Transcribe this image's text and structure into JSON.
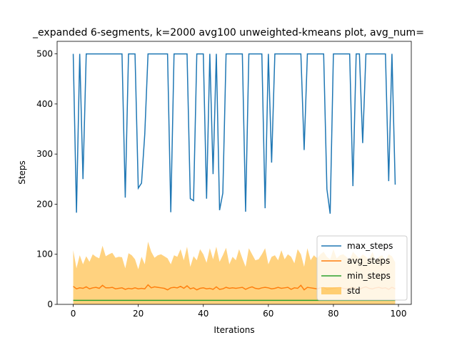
{
  "chart_data": {
    "type": "line",
    "title": "_expanded 6-segments, k=2000 avg100 unweighted-kmeans plot, avg_num=",
    "xlabel": "Iterations",
    "ylabel": "Steps",
    "x": [
      0,
      1,
      2,
      3,
      4,
      5,
      6,
      7,
      8,
      9,
      10,
      11,
      12,
      13,
      14,
      15,
      16,
      17,
      18,
      19,
      20,
      21,
      22,
      23,
      24,
      25,
      26,
      27,
      28,
      29,
      30,
      31,
      32,
      33,
      34,
      35,
      36,
      37,
      38,
      39,
      40,
      41,
      42,
      43,
      44,
      45,
      46,
      47,
      48,
      49,
      50,
      51,
      52,
      53,
      54,
      55,
      56,
      57,
      58,
      59,
      60,
      61,
      62,
      63,
      64,
      65,
      66,
      67,
      68,
      69,
      70,
      71,
      72,
      73,
      74,
      75,
      76,
      77,
      78,
      79,
      80,
      81,
      82,
      83,
      84,
      85,
      86,
      87,
      88,
      89,
      90,
      91,
      92,
      93,
      94,
      95,
      96,
      97,
      98,
      99
    ],
    "series": [
      {
        "name": "max_steps",
        "color": "#1f77b4",
        "values": [
          500,
          183,
          500,
          250,
          500,
          500,
          500,
          500,
          500,
          500,
          500,
          500,
          500,
          500,
          500,
          500,
          213,
          500,
          500,
          500,
          232,
          242,
          340,
          500,
          500,
          500,
          500,
          500,
          500,
          500,
          184,
          500,
          500,
          500,
          500,
          500,
          211,
          207,
          500,
          500,
          500,
          211,
          500,
          260,
          500,
          188,
          222,
          500,
          500,
          500,
          500,
          500,
          500,
          185,
          500,
          500,
          500,
          500,
          500,
          192,
          500,
          283,
          500,
          500,
          500,
          500,
          500,
          500,
          500,
          500,
          500,
          308,
          500,
          500,
          500,
          500,
          500,
          500,
          230,
          181,
          500,
          500,
          500,
          500,
          500,
          500,
          236,
          500,
          500,
          322,
          500,
          500,
          500,
          500,
          500,
          500,
          500,
          246,
          500,
          239
        ]
      },
      {
        "name": "avg_steps",
        "color": "#ff7f0e",
        "values": [
          36,
          31,
          33,
          32,
          35,
          31,
          33,
          34,
          32,
          38,
          33,
          33,
          34,
          31,
          32,
          33,
          30,
          32,
          31,
          33,
          31,
          32,
          31,
          39,
          33,
          35,
          34,
          33,
          32,
          29,
          33,
          34,
          33,
          36,
          32,
          37,
          31,
          33,
          29,
          32,
          33,
          31,
          32,
          30,
          35,
          30,
          31,
          34,
          32,
          33,
          32,
          33,
          34,
          30,
          33,
          35,
          32,
          31,
          33,
          34,
          33,
          31,
          32,
          34,
          32,
          33,
          34,
          30,
          33,
          32,
          38,
          29,
          34,
          33,
          32,
          31,
          33,
          34,
          30,
          31,
          32,
          33,
          34,
          32,
          31,
          33,
          34,
          32,
          30,
          33,
          35,
          32,
          31,
          33,
          34,
          32,
          33,
          30,
          34,
          31
        ]
      },
      {
        "name": "min_steps",
        "color": "#2ca02c",
        "values": [
          8,
          8,
          8,
          8,
          8,
          8,
          8,
          8,
          8,
          8,
          8,
          8,
          8,
          8,
          8,
          8,
          8,
          8,
          8,
          8,
          8,
          8,
          8,
          8,
          8,
          8,
          8,
          8,
          8,
          8,
          8,
          8,
          8,
          8,
          8,
          8,
          8,
          8,
          8,
          8,
          8,
          8,
          8,
          8,
          8,
          8,
          8,
          8,
          8,
          8,
          8,
          8,
          8,
          8,
          8,
          8,
          8,
          8,
          8,
          8,
          8,
          8,
          8,
          8,
          8,
          8,
          8,
          8,
          8,
          8,
          8,
          8,
          8,
          8,
          8,
          8,
          8,
          8,
          8,
          8,
          8,
          8,
          8,
          8,
          8,
          8,
          8,
          8,
          8,
          8,
          8,
          8,
          8,
          8,
          8,
          8,
          8,
          8,
          8,
          8
        ]
      }
    ],
    "std": {
      "name": "std",
      "color": "#ffa500",
      "values": [
        72,
        41,
        65,
        48,
        61,
        54,
        67,
        61,
        60,
        79,
        63,
        67,
        69,
        62,
        63,
        61,
        42,
        70,
        67,
        57,
        39,
        63,
        49,
        86,
        72,
        58,
        64,
        67,
        64,
        63,
        47,
        64,
        62,
        74,
        56,
        78,
        44,
        63,
        59,
        78,
        67,
        52,
        80,
        60,
        80,
        55,
        67,
        79,
        48,
        62,
        56,
        77,
        58,
        45,
        79,
        65,
        56,
        59,
        67,
        78,
        47,
        64,
        66,
        54,
        76,
        57,
        66,
        65,
        49,
        78,
        62,
        46,
        78,
        55,
        66,
        61,
        67,
        71,
        65,
        59,
        78,
        59,
        64,
        68,
        64,
        55,
        71,
        66,
        62,
        67,
        60,
        58,
        74,
        55,
        61,
        66,
        55,
        70,
        62,
        53
      ]
    },
    "xlim": [
      -4.95,
      103.95
    ],
    "xticks": [
      0,
      20,
      40,
      60,
      80,
      100
    ],
    "ylim": [
      0,
      525
    ],
    "yticks": [
      0,
      100,
      200,
      300,
      400,
      500
    ],
    "legend": "lower right"
  }
}
